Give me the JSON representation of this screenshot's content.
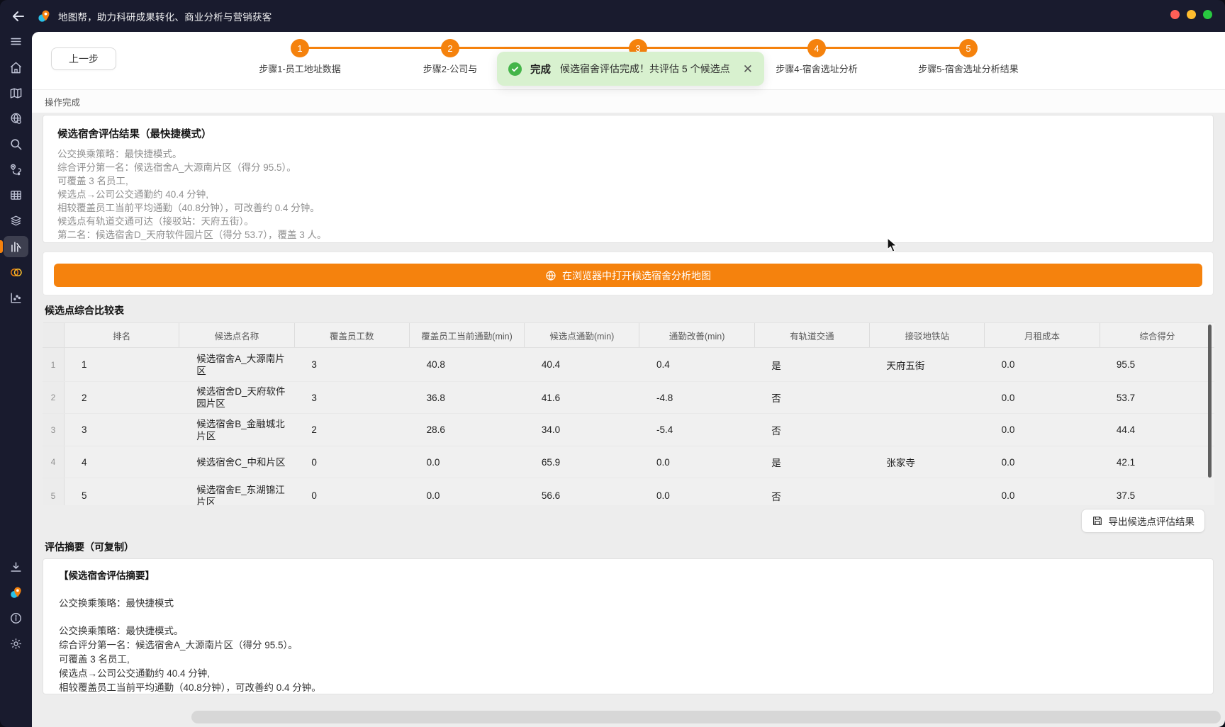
{
  "window": {
    "title": "地图帮，助力科研成果转化、商业分析与营销获客"
  },
  "colors": {
    "accent_orange": "#F5820D",
    "sidebar_dark": "#191B2E",
    "toast_bg_green": "#D8F1CF",
    "toast_check_green": "#44B549",
    "traffic_red": "#FF5F57",
    "traffic_yellow": "#FEBC2E",
    "traffic_green": "#28C840"
  },
  "top_bar": {
    "back_button_label": "上一步"
  },
  "stepper": {
    "steps": [
      {
        "num": "1",
        "label": "步骤1-员工地址数据"
      },
      {
        "num": "2",
        "label": "步骤2-公司与"
      },
      {
        "num": "3",
        "label": ""
      },
      {
        "num": "4",
        "label": "步骤4-宿舍选址分析"
      },
      {
        "num": "5",
        "label": "步骤5-宿舍选址分析结果"
      }
    ]
  },
  "toast": {
    "status": "完成",
    "message": "候选宿舍评估完成！共评估 5 个候选点",
    "close_glyph": "✕"
  },
  "status_text": "操作完成",
  "result_card": {
    "title": "候选宿舍评估结果（最快捷模式）",
    "lines": [
      "公交换乘策略：最快捷模式。",
      "综合评分第一名：候选宿舍A_大源南片区（得分 95.5）。",
      "可覆盖 3 名员工,",
      "候选点→公司公交通勤约 40.4 分钟,",
      "相较覆盖员工当前平均通勤（40.8分钟），可改善约 0.4 分钟。",
      "候选点有轨道交通可达（接驳站：天府五街）。",
      "第二名：候选宿舍D_天府软件园片区（得分 53.7），覆盖 3 人。"
    ]
  },
  "map_button": {
    "label": "在浏览器中打开候选宿舍分析地图"
  },
  "comparison_table": {
    "title": "候选点综合比较表",
    "columns": [
      "",
      "排名",
      "候选点名称",
      "覆盖员工数",
      "覆盖员工当前通勤(min)",
      "候选点通勤(min)",
      "通勤改善(min)",
      "有轨道交通",
      "接驳地铁站",
      "月租成本",
      "综合得分"
    ],
    "rows": [
      [
        "1",
        "1",
        "候选宿舍A_大源南片区",
        "3",
        "40.8",
        "40.4",
        "0.4",
        "是",
        "天府五街",
        "0.0",
        "95.5"
      ],
      [
        "2",
        "2",
        "候选宿舍D_天府软件园片区",
        "3",
        "36.8",
        "41.6",
        "-4.8",
        "否",
        "",
        "0.0",
        "53.7"
      ],
      [
        "3",
        "3",
        "候选宿舍B_金融城北片区",
        "2",
        "28.6",
        "34.0",
        "-5.4",
        "否",
        "",
        "0.0",
        "44.4"
      ],
      [
        "4",
        "4",
        "候选宿舍C_中和片区",
        "0",
        "0.0",
        "65.9",
        "0.0",
        "是",
        "张家寺",
        "0.0",
        "42.1"
      ],
      [
        "5",
        "5",
        "候选宿舍E_东湖锦江片区",
        "0",
        "0.0",
        "56.6",
        "0.0",
        "否",
        "",
        "0.0",
        "37.5"
      ]
    ]
  },
  "export_button": {
    "label": "导出候选点评估结果"
  },
  "summary_section": {
    "title": "评估摘要（可复制）",
    "lines": [
      "【候选宿舍评估摘要】",
      "",
      "公交换乘策略：最快捷模式",
      "",
      "公交换乘策略：最快捷模式。",
      "综合评分第一名：候选宿舍A_大源南片区（得分 95.5）。",
      "可覆盖 3 名员工,",
      "候选点→公司公交通勤约 40.4 分钟,",
      "相较覆盖员工当前平均通勤（40.8分钟），可改善约 0.4 分钟。"
    ]
  },
  "sidebar": {
    "icons": [
      "menu-icon",
      "home-icon",
      "map-icon",
      "globe-gear-icon",
      "search-icon",
      "route-pins-icon",
      "grid-table-icon",
      "layers-icon",
      "histogram-icon",
      "venn-icon",
      "scatter-plot-icon",
      "download-icon",
      "app-logo-icon",
      "info-icon",
      "gear-icon"
    ],
    "active_icon": "histogram-icon"
  }
}
